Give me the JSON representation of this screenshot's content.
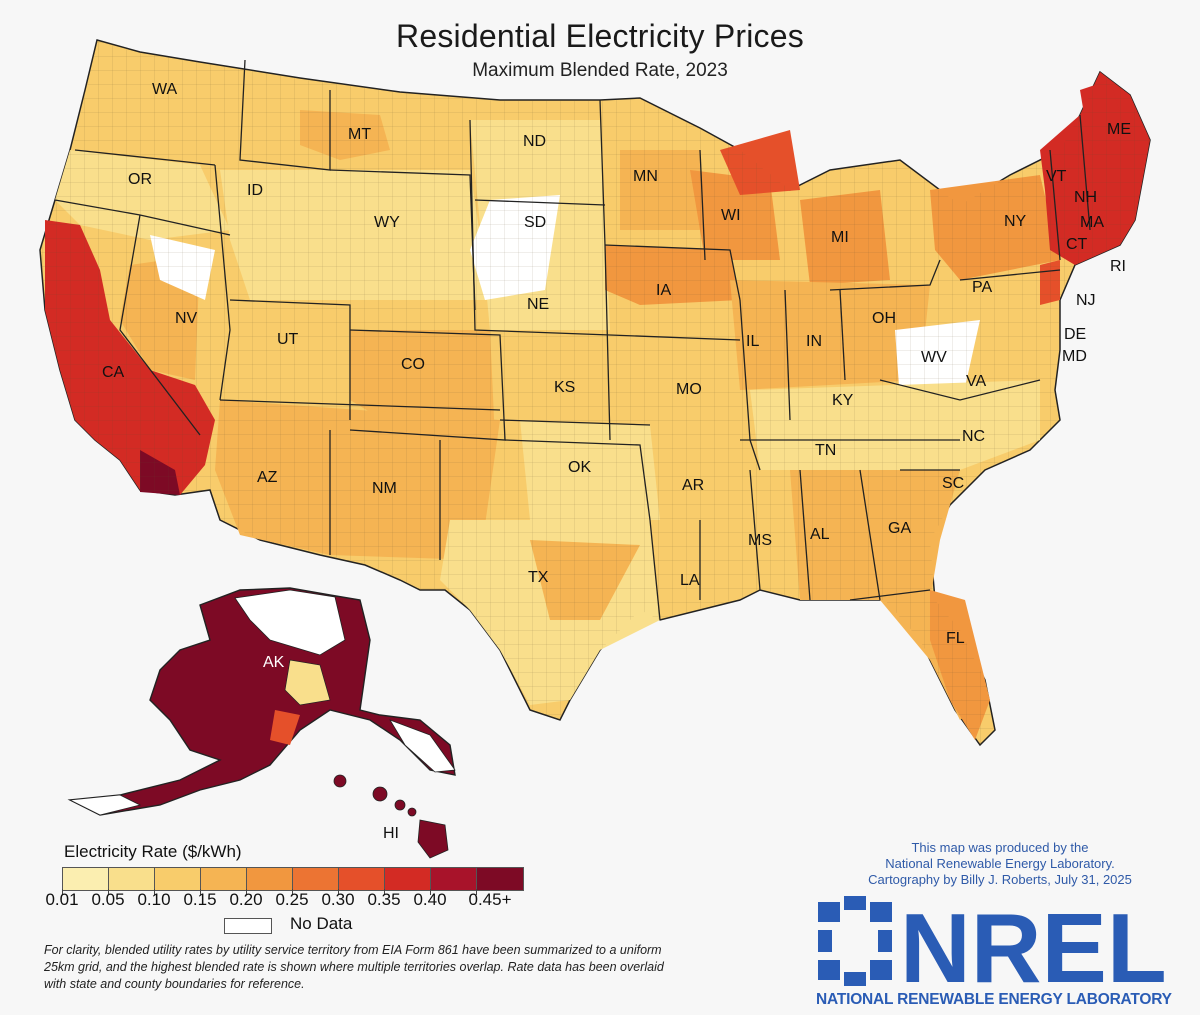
{
  "title": "Residential Electricity Prices",
  "subtitle": "Maximum Blended Rate, 2023",
  "state_labels": [
    "WA",
    "OR",
    "ID",
    "MT",
    "ND",
    "MN",
    "SD",
    "WY",
    "WI",
    "MI",
    "ME",
    "VT",
    "NH",
    "MA",
    "CT",
    "RI",
    "NY",
    "NJ",
    "PA",
    "DE",
    "MD",
    "NV",
    "CA",
    "UT",
    "CO",
    "NE",
    "IA",
    "IL",
    "IN",
    "OH",
    "WV",
    "VA",
    "KS",
    "MO",
    "KY",
    "TN",
    "NC",
    "SC",
    "GA",
    "AL",
    "MS",
    "AR",
    "LA",
    "OK",
    "TX",
    "NM",
    "AZ",
    "FL",
    "AK",
    "HI"
  ],
  "legend": {
    "title": "Electricity Rate ($/kWh)",
    "colors": [
      "#fbeeb0",
      "#f9df8c",
      "#f8cc6b",
      "#f5b453",
      "#f1973f",
      "#ec7433",
      "#e5502a",
      "#d32b24",
      "#a8132a",
      "#7d0a25"
    ],
    "ticks": [
      "0.01",
      "0.05",
      "0.10",
      "0.15",
      "0.20",
      "0.25",
      "0.30",
      "0.35",
      "0.40",
      "0.45+"
    ],
    "no_data": "No Data"
  },
  "note": "For clarity, blended utility rates by utility service territory from EIA Form 861 have been summarized to a uniform 25km grid, and the highest blended rate is shown where multiple territories overlap. Rate data has been overlaid with state and county boundaries for reference.",
  "credit": {
    "line1": "This map was produced by the",
    "line2": "National Renewable Energy Laboratory.",
    "line3": "Cartography by Billy J. Roberts,   July 31, 2025"
  },
  "logo": {
    "wordmark": "NREL",
    "tagline": "NATIONAL RENEWABLE ENERGY LABORATORY",
    "color": "#2a5cb5"
  }
}
